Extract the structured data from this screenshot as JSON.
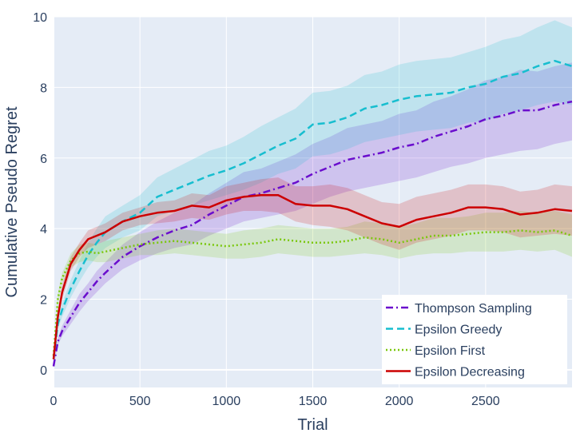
{
  "chart_data": {
    "type": "line",
    "xlabel": "Trial",
    "ylabel": "Cumulative Pseudo Regret",
    "xlim": [
      0,
      3000
    ],
    "ylim": [
      -0.5,
      10
    ],
    "xticks": [
      0,
      500,
      1000,
      1500,
      2000,
      2500
    ],
    "yticks": [
      0,
      2,
      4,
      6,
      8,
      10
    ],
    "grid": true,
    "legend_position": "bottom-right",
    "background": "#e5ecf6",
    "series": [
      {
        "name": "Thompson Sampling",
        "color": "#6a0dcd",
        "dash": "dashdot",
        "x": [
          0,
          25,
          50,
          100,
          150,
          200,
          250,
          300,
          400,
          500,
          600,
          700,
          800,
          900,
          1000,
          1100,
          1200,
          1300,
          1400,
          1500,
          1600,
          1700,
          1800,
          1900,
          2000,
          2100,
          2200,
          2300,
          2400,
          2500,
          2600,
          2700,
          2800,
          2900,
          3000
        ],
        "y": [
          0.1,
          0.8,
          1.1,
          1.5,
          1.9,
          2.2,
          2.5,
          2.75,
          3.2,
          3.5,
          3.75,
          3.95,
          4.1,
          4.4,
          4.65,
          4.9,
          5.0,
          5.15,
          5.3,
          5.55,
          5.75,
          5.95,
          6.05,
          6.15,
          6.3,
          6.4,
          6.6,
          6.75,
          6.9,
          7.1,
          7.2,
          7.35,
          7.35,
          7.5,
          7.6
        ],
        "band_low": [
          0.05,
          0.7,
          0.95,
          1.3,
          1.65,
          1.95,
          2.2,
          2.45,
          2.85,
          3.1,
          3.3,
          3.45,
          3.55,
          3.8,
          4.0,
          4.2,
          4.3,
          4.4,
          4.5,
          4.7,
          4.9,
          5.05,
          5.15,
          5.25,
          5.35,
          5.45,
          5.6,
          5.75,
          5.85,
          6.0,
          6.1,
          6.2,
          6.25,
          6.4,
          6.5
        ],
        "band_high": [
          0.15,
          0.9,
          1.25,
          1.7,
          2.15,
          2.45,
          2.8,
          3.05,
          3.55,
          3.9,
          4.2,
          4.45,
          4.65,
          5.0,
          5.3,
          5.6,
          5.7,
          5.9,
          6.1,
          6.4,
          6.6,
          6.85,
          6.95,
          7.05,
          7.25,
          7.35,
          7.6,
          7.75,
          7.95,
          8.2,
          8.3,
          8.5,
          8.45,
          8.6,
          8.7
        ]
      },
      {
        "name": "Epsilon Greedy",
        "color": "#17becf",
        "dash": "dash",
        "x": [
          0,
          25,
          50,
          100,
          150,
          200,
          250,
          300,
          400,
          500,
          600,
          700,
          800,
          900,
          1000,
          1100,
          1200,
          1300,
          1400,
          1500,
          1600,
          1700,
          1800,
          1900,
          2000,
          2100,
          2200,
          2300,
          2400,
          2500,
          2600,
          2700,
          2800,
          2900,
          3000
        ],
        "y": [
          0.3,
          1.3,
          1.7,
          2.3,
          2.8,
          3.25,
          3.6,
          3.9,
          4.2,
          4.45,
          4.9,
          5.1,
          5.3,
          5.5,
          5.65,
          5.85,
          6.1,
          6.35,
          6.55,
          6.95,
          7.0,
          7.15,
          7.4,
          7.5,
          7.65,
          7.75,
          7.8,
          7.85,
          8.0,
          8.1,
          8.3,
          8.4,
          8.6,
          8.75,
          8.6
        ],
        "band_low": [
          0.25,
          1.15,
          1.5,
          2.05,
          2.5,
          2.9,
          3.2,
          3.45,
          3.75,
          3.95,
          4.35,
          4.5,
          4.65,
          4.8,
          4.95,
          5.1,
          5.3,
          5.55,
          5.7,
          6.05,
          6.1,
          6.25,
          6.45,
          6.55,
          6.65,
          6.75,
          6.8,
          6.85,
          7.0,
          7.05,
          7.25,
          7.35,
          7.5,
          7.6,
          7.5
        ],
        "band_high": [
          0.35,
          1.45,
          1.9,
          2.55,
          3.1,
          3.6,
          4.0,
          4.35,
          4.65,
          4.95,
          5.45,
          5.7,
          5.95,
          6.2,
          6.35,
          6.6,
          6.9,
          7.15,
          7.4,
          7.85,
          7.9,
          8.05,
          8.35,
          8.45,
          8.65,
          8.75,
          8.8,
          8.85,
          9.0,
          9.15,
          9.35,
          9.45,
          9.7,
          9.9,
          9.7
        ]
      },
      {
        "name": "Epsilon First",
        "color": "#7ac70c",
        "dash": "dot",
        "x": [
          0,
          25,
          50,
          100,
          150,
          200,
          250,
          300,
          400,
          500,
          600,
          700,
          800,
          900,
          1000,
          1100,
          1200,
          1300,
          1400,
          1500,
          1600,
          1700,
          1800,
          1900,
          2000,
          2100,
          2200,
          2300,
          2400,
          2500,
          2600,
          2700,
          2800,
          2900,
          3000
        ],
        "y": [
          0.4,
          2.0,
          2.6,
          3.1,
          3.3,
          3.35,
          3.3,
          3.35,
          3.45,
          3.55,
          3.6,
          3.65,
          3.6,
          3.55,
          3.5,
          3.55,
          3.6,
          3.7,
          3.65,
          3.6,
          3.6,
          3.65,
          3.75,
          3.7,
          3.6,
          3.7,
          3.8,
          3.8,
          3.85,
          3.9,
          3.9,
          3.95,
          3.9,
          3.95,
          3.8
        ],
        "band_low": [
          0.35,
          1.85,
          2.45,
          2.9,
          3.05,
          3.1,
          3.05,
          3.05,
          3.15,
          3.25,
          3.25,
          3.3,
          3.25,
          3.2,
          3.15,
          3.15,
          3.2,
          3.3,
          3.25,
          3.2,
          3.2,
          3.25,
          3.3,
          3.25,
          3.15,
          3.25,
          3.3,
          3.3,
          3.35,
          3.35,
          3.35,
          3.4,
          3.35,
          3.4,
          3.2
        ],
        "band_high": [
          0.45,
          2.15,
          2.75,
          3.3,
          3.55,
          3.6,
          3.55,
          3.65,
          3.75,
          3.85,
          3.95,
          4.0,
          3.95,
          3.9,
          3.85,
          3.95,
          4.0,
          4.1,
          4.05,
          4.0,
          4.0,
          4.05,
          4.2,
          4.15,
          4.05,
          4.15,
          4.3,
          4.3,
          4.35,
          4.45,
          4.45,
          4.5,
          4.45,
          4.5,
          4.4
        ]
      },
      {
        "name": "Epsilon Decreasing",
        "color": "#cc0000",
        "dash": "solid",
        "x": [
          0,
          25,
          50,
          100,
          150,
          200,
          250,
          300,
          400,
          500,
          600,
          700,
          800,
          900,
          1000,
          1100,
          1200,
          1300,
          1400,
          1500,
          1600,
          1700,
          1800,
          1900,
          2000,
          2100,
          2200,
          2300,
          2400,
          2500,
          2600,
          2700,
          2800,
          2900,
          3000
        ],
        "y": [
          0.3,
          1.5,
          2.2,
          3.0,
          3.4,
          3.7,
          3.8,
          3.9,
          4.2,
          4.35,
          4.45,
          4.5,
          4.65,
          4.6,
          4.8,
          4.9,
          4.95,
          4.95,
          4.7,
          4.65,
          4.65,
          4.55,
          4.35,
          4.15,
          4.05,
          4.25,
          4.35,
          4.45,
          4.6,
          4.6,
          4.55,
          4.4,
          4.45,
          4.55,
          4.5
        ],
        "band_low": [
          0.25,
          1.35,
          2.0,
          2.8,
          3.2,
          3.45,
          3.55,
          3.65,
          3.95,
          4.1,
          4.15,
          4.2,
          4.3,
          4.25,
          4.4,
          4.5,
          4.5,
          4.45,
          4.2,
          4.1,
          4.05,
          3.95,
          3.75,
          3.55,
          3.4,
          3.6,
          3.7,
          3.8,
          3.95,
          3.95,
          3.9,
          3.75,
          3.8,
          3.85,
          3.8
        ],
        "band_high": [
          0.35,
          1.65,
          2.4,
          3.2,
          3.6,
          3.95,
          4.05,
          4.15,
          4.45,
          4.6,
          4.75,
          4.8,
          5.0,
          4.95,
          5.2,
          5.3,
          5.4,
          5.45,
          5.2,
          5.2,
          5.25,
          5.15,
          4.95,
          4.75,
          4.7,
          4.9,
          5.0,
          5.1,
          5.25,
          5.25,
          5.2,
          5.05,
          5.1,
          5.25,
          5.2
        ]
      }
    ]
  }
}
